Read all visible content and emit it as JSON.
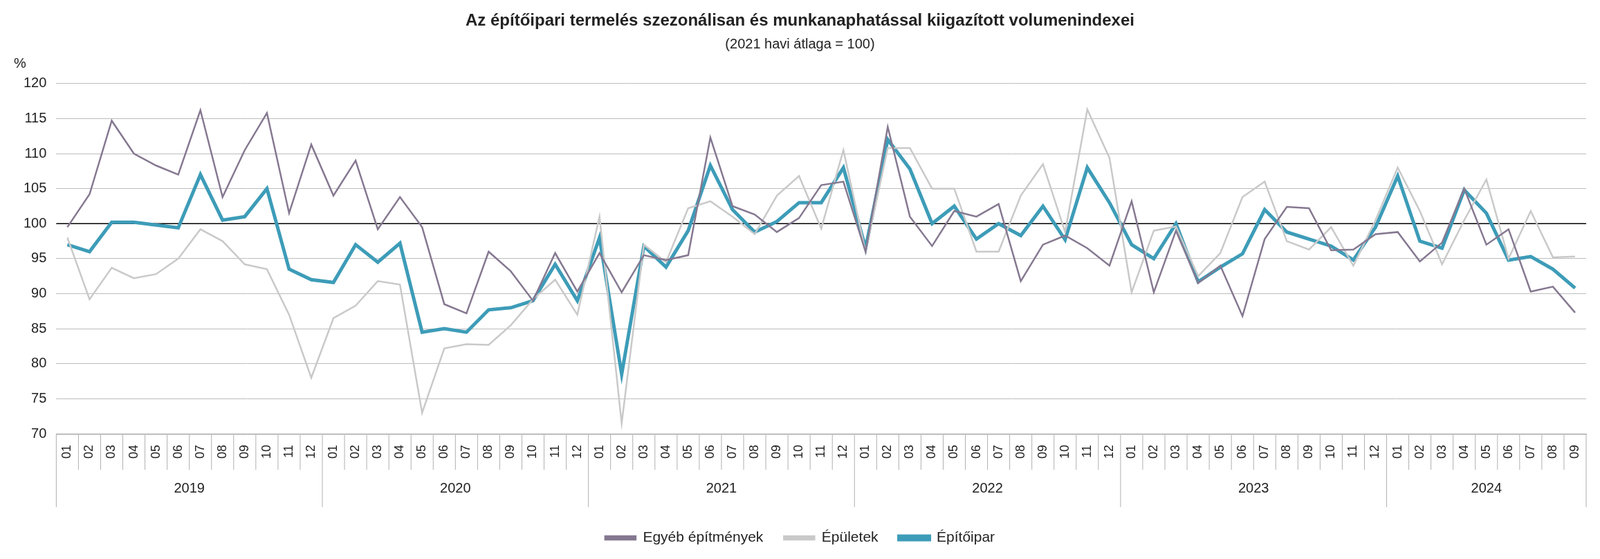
{
  "chart_data": {
    "type": "line",
    "title": "Az építőipari termelés szezonálisan és munkanaphatással kiigazított volumenindexei",
    "subtitle": "(2021 havi átlaga = 100)",
    "y_unit_label": "%",
    "categories": [
      "01",
      "02",
      "03",
      "04",
      "05",
      "06",
      "07",
      "08",
      "09",
      "10",
      "11",
      "12",
      "01",
      "02",
      "03",
      "04",
      "05",
      "06",
      "07",
      "08",
      "09",
      "10",
      "11",
      "12",
      "01",
      "02",
      "03",
      "04",
      "05",
      "06",
      "07",
      "08",
      "09",
      "10",
      "11",
      "12",
      "01",
      "02",
      "03",
      "04",
      "05",
      "06",
      "07",
      "08",
      "09",
      "10",
      "11",
      "12",
      "01",
      "02",
      "03",
      "04",
      "05",
      "06",
      "07",
      "08",
      "09",
      "10",
      "11",
      "12",
      "01",
      "02",
      "03",
      "04",
      "05",
      "06",
      "07",
      "08",
      "09"
    ],
    "groups": [
      {
        "label": "2019",
        "count": 12
      },
      {
        "label": "2020",
        "count": 12
      },
      {
        "label": "2021",
        "count": 12
      },
      {
        "label": "2022",
        "count": 12
      },
      {
        "label": "2023",
        "count": 12
      },
      {
        "label": "2024",
        "count": 9
      }
    ],
    "series": [
      {
        "name": "Építőipar",
        "color": "#3d9cb8",
        "values": [
          97,
          96,
          100.2,
          100.2,
          99.8,
          99.4,
          107,
          100.5,
          101,
          105,
          93.5,
          92,
          91.6,
          97,
          94.5,
          97.2,
          84.5,
          85,
          84.5,
          87.7,
          88,
          89,
          94.2,
          89,
          98,
          78.5,
          96.8,
          93.8,
          99,
          108.3,
          102,
          98.8,
          100.3,
          103,
          103,
          108,
          96.5,
          112,
          107.8,
          100,
          102.5,
          97.8,
          100,
          98.3,
          102.5,
          97.7,
          108,
          103,
          97,
          95,
          100,
          91.7,
          93.8,
          95.7,
          102,
          98.8,
          97.8,
          96.8,
          94.8,
          99.5,
          106.8,
          97.5,
          96.5,
          104.8,
          101.5,
          94.8,
          95.3,
          93.5,
          90.8
        ]
      },
      {
        "name": "Épületek",
        "color": "#c9c9c9",
        "values": [
          98,
          89.2,
          93.7,
          92.2,
          92.8,
          95,
          99.2,
          97.5,
          94.2,
          93.5,
          87,
          78,
          86.5,
          88.3,
          91.8,
          91.3,
          73,
          82.2,
          82.8,
          82.7,
          85.5,
          89.2,
          92,
          87,
          101,
          71.5,
          97,
          94.5,
          102.2,
          103.2,
          101,
          98.5,
          104,
          106.8,
          99.3,
          110.5,
          96,
          110.8,
          110.8,
          105,
          105,
          96,
          96,
          104,
          108.5,
          98.8,
          116.3,
          109.4,
          90.2,
          99,
          99.6,
          92.5,
          95.8,
          103.8,
          106,
          97.5,
          96.3,
          99.5,
          94,
          100.5,
          108,
          101.8,
          94.2,
          100.5,
          106.3,
          95,
          101.8,
          95.2,
          95.3
        ]
      },
      {
        "name": "Egyéb építmények",
        "color": "#857890",
        "values": [
          99.5,
          104.2,
          114.7,
          110,
          108.3,
          107,
          116.2,
          103.8,
          110.5,
          115.8,
          101.5,
          111.3,
          104,
          109,
          99.2,
          103.8,
          99.5,
          88.5,
          87.2,
          96,
          93.2,
          89,
          95.8,
          90.3,
          95.8,
          90.2,
          95.5,
          94.8,
          95.5,
          112.3,
          102.5,
          101.3,
          98.8,
          100.8,
          105.5,
          106,
          96,
          113.8,
          101,
          96.8,
          101.8,
          101,
          102.8,
          91.8,
          97,
          98.3,
          96.5,
          94,
          103.2,
          90.2,
          99,
          91.5,
          94,
          86.8,
          97.8,
          102.4,
          102.2,
          96.2,
          96.3,
          98.5,
          98.8,
          94.6,
          97.3,
          105,
          97,
          99.2,
          90.3,
          91,
          87.3
        ]
      }
    ],
    "hline": 100,
    "ylim": [
      70,
      120
    ],
    "yticks": [
      70,
      75,
      80,
      85,
      90,
      95,
      100,
      105,
      110,
      115,
      120
    ],
    "grid": true,
    "legend": "bottom"
  }
}
